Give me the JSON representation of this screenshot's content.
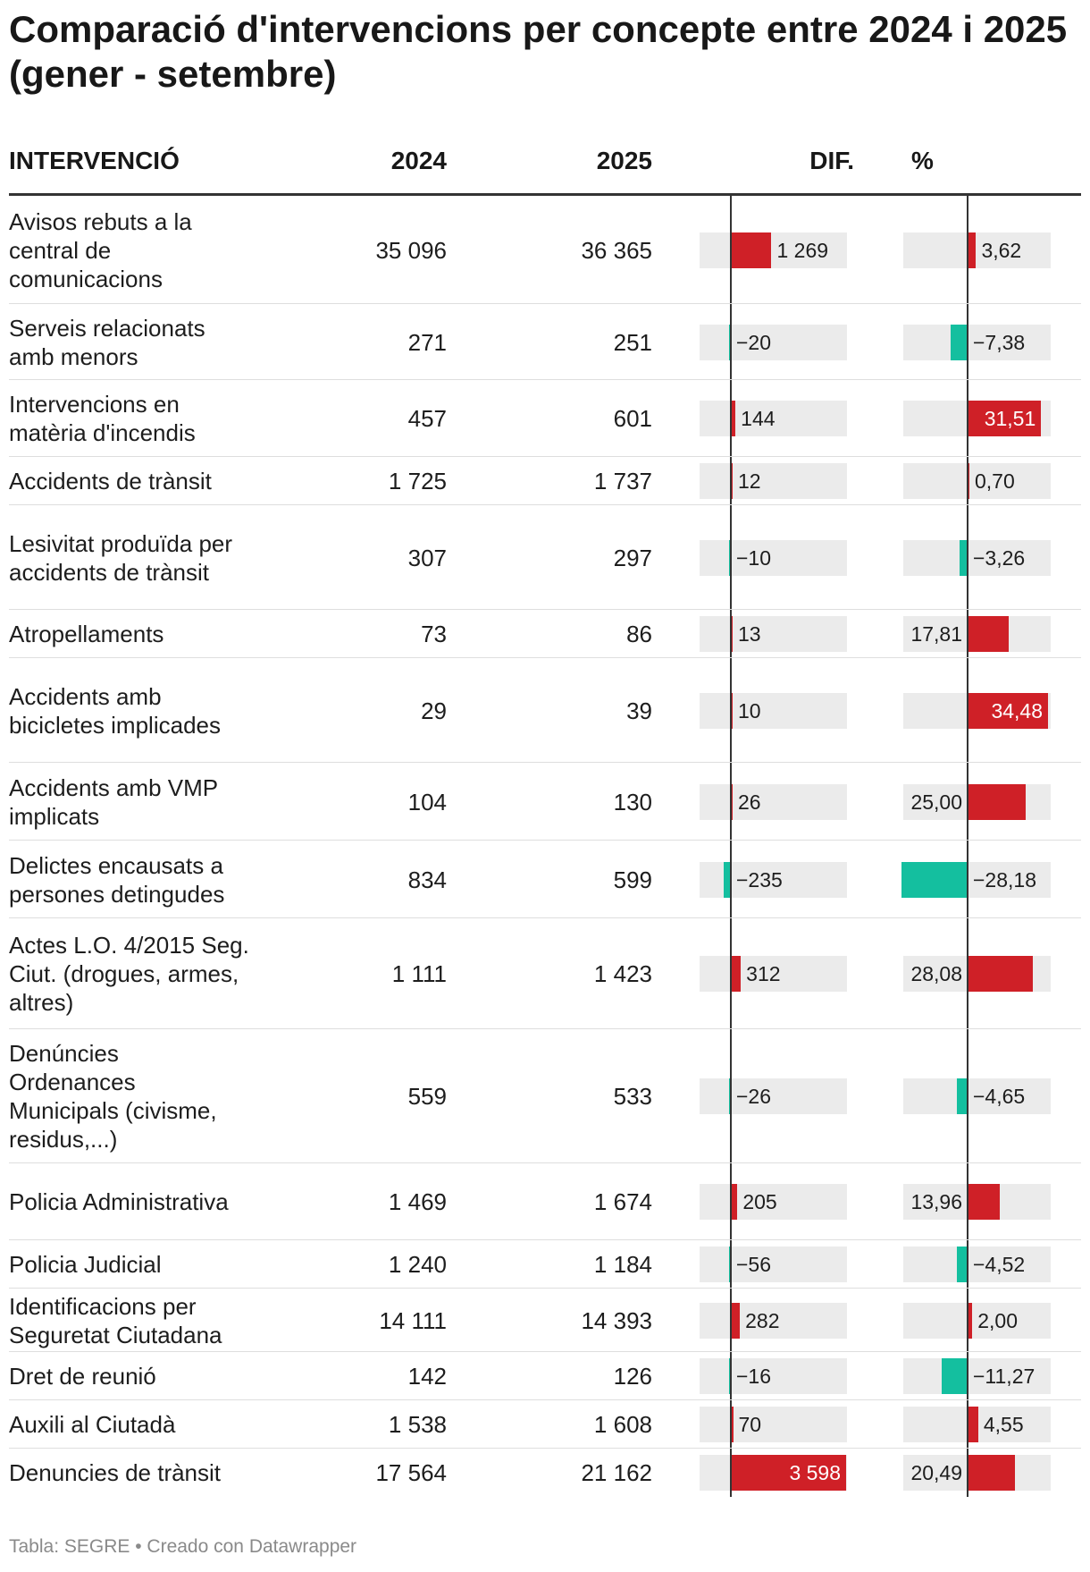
{
  "title": "Comparació d'intervencions per concepte entre 2024 i 2025 (gener - setembre)",
  "headers": {
    "label": "INTERVENCIÓ",
    "y2024": "2024",
    "y2025": "2025",
    "dif": "DIF.",
    "pct": "%"
  },
  "colors": {
    "increase": "#cf2027",
    "decrease": "#14bf9f",
    "bar_bg": "#ebebeb"
  },
  "chart_data": {
    "type": "table",
    "columns": [
      "INTERVENCIÓ",
      "2024",
      "2025",
      "DIF.",
      "%"
    ],
    "dif_range": [
      -235,
      3598
    ],
    "pct_range": [
      -28.18,
      34.48
    ],
    "rows": [
      {
        "label": "Avisos rebuts a la central de comunicacions",
        "y2024": "35 096",
        "y2025": "36 365",
        "dif": 1269,
        "dif_label": "1 269",
        "pct": 3.62,
        "pct_label": "3,62"
      },
      {
        "label": "Serveis relacionats amb menors",
        "y2024": "271",
        "y2025": "251",
        "dif": -20,
        "dif_label": "−20",
        "pct": -7.38,
        "pct_label": "−7,38"
      },
      {
        "label": "Intervencions en matèria d'incendis",
        "y2024": "457",
        "y2025": "601",
        "dif": 144,
        "dif_label": "144",
        "pct": 31.51,
        "pct_label": "31,51"
      },
      {
        "label": "Accidents de trànsit",
        "y2024": "1 725",
        "y2025": "1 737",
        "dif": 12,
        "dif_label": "12",
        "pct": 0.7,
        "pct_label": "0,70"
      },
      {
        "label": "Lesivitat produïda per accidents de trànsit",
        "y2024": "307",
        "y2025": "297",
        "dif": -10,
        "dif_label": "−10",
        "pct": -3.26,
        "pct_label": "−3,26"
      },
      {
        "label": "Atropellaments",
        "y2024": "73",
        "y2025": "86",
        "dif": 13,
        "dif_label": "13",
        "pct": 17.81,
        "pct_label": "17,81"
      },
      {
        "label": "Accidents amb bicicletes implicades",
        "y2024": "29",
        "y2025": "39",
        "dif": 10,
        "dif_label": "10",
        "pct": 34.48,
        "pct_label": "34,48"
      },
      {
        "label": "Accidents amb VMP implicats",
        "y2024": "104",
        "y2025": "130",
        "dif": 26,
        "dif_label": "26",
        "pct": 25.0,
        "pct_label": "25,00"
      },
      {
        "label": "Delictes encausats a persones detingudes",
        "y2024": "834",
        "y2025": "599",
        "dif": -235,
        "dif_label": "−235",
        "pct": -28.18,
        "pct_label": "−28,18"
      },
      {
        "label": "Actes L.O. 4/2015 Seg. Ciut. (drogues, armes, altres)",
        "y2024": "1 111",
        "y2025": "1 423",
        "dif": 312,
        "dif_label": "312",
        "pct": 28.08,
        "pct_label": "28,08"
      },
      {
        "label": "Denúncies Ordenances Municipals (civisme, residus,...)",
        "y2024": "559",
        "y2025": "533",
        "dif": -26,
        "dif_label": "−26",
        "pct": -4.65,
        "pct_label": "−4,65"
      },
      {
        "label": "Policia Administrativa",
        "y2024": "1 469",
        "y2025": "1 674",
        "dif": 205,
        "dif_label": "205",
        "pct": 13.96,
        "pct_label": "13,96"
      },
      {
        "label": "Policia Judicial",
        "y2024": "1 240",
        "y2025": "1 184",
        "dif": -56,
        "dif_label": "−56",
        "pct": -4.52,
        "pct_label": "−4,52"
      },
      {
        "label": "Identificacions per Seguretat Ciutadana",
        "y2024": "14 111",
        "y2025": "14 393",
        "dif": 282,
        "dif_label": "282",
        "pct": 2.0,
        "pct_label": "2,00"
      },
      {
        "label": "Dret de reunió",
        "y2024": "142",
        "y2025": "126",
        "dif": -16,
        "dif_label": "−16",
        "pct": -11.27,
        "pct_label": "−11,27"
      },
      {
        "label": "Auxili al Ciutadà",
        "y2024": "1 538",
        "y2025": "1 608",
        "dif": 70,
        "dif_label": "70",
        "pct": 4.55,
        "pct_label": "4,55"
      },
      {
        "label": "Denuncies de trànsit",
        "y2024": "17 564",
        "y2025": "21 162",
        "dif": 3598,
        "dif_label": "3 598",
        "pct": 20.49,
        "pct_label": "20,49"
      }
    ]
  },
  "footer": "Tabla: SEGRE • Creado con Datawrapper"
}
